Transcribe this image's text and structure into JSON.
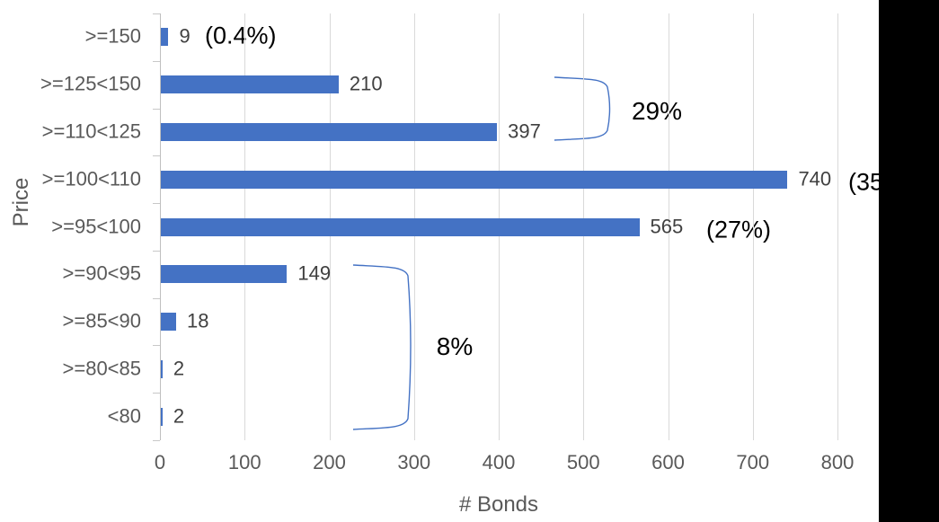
{
  "chart_data": {
    "type": "bar",
    "orientation": "horizontal",
    "title": "",
    "xlabel": "# Bonds",
    "ylabel": "Price",
    "categories": [
      ">=150",
      ">=125<150",
      ">=110<125",
      ">=100<110",
      ">=95<100",
      ">=90<95",
      ">=85<90",
      ">=80<85",
      "<80"
    ],
    "values": [
      9,
      210,
      397,
      740,
      565,
      149,
      18,
      2,
      2
    ],
    "data_labels": [
      "9",
      "210",
      "397",
      "740",
      "565",
      "149",
      "18",
      "2",
      "2"
    ],
    "xlim": [
      0,
      800
    ],
    "x_ticks": [
      0,
      100,
      200,
      300,
      400,
      500,
      600,
      700,
      800
    ],
    "grid": true,
    "legend": false,
    "annotations": {
      "pct_150": "(0.4%)",
      "pct_29": "29%",
      "pct_35_truncated": "(35",
      "pct_27": "(27%)",
      "pct_8": "8%"
    }
  },
  "colors": {
    "bar": "#4472C4",
    "gridline": "#D9D9D9",
    "axis_line": "#BFBFBF",
    "tick_stub": "#C8C8C8",
    "tick_label": "#595959",
    "data_label": "#404040",
    "annotation_text": "#000000",
    "brace": "#4472C4",
    "black_band": "#000000"
  }
}
